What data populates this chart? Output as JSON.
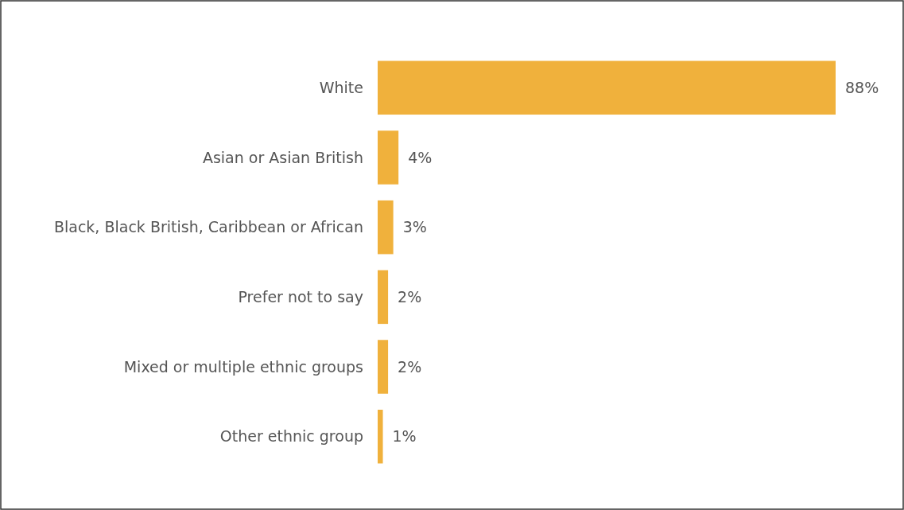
{
  "chart_data": {
    "type": "bar",
    "orientation": "horizontal",
    "categories": [
      "White",
      "Asian or Asian British",
      "Black, Black British, Caribbean or African",
      "Prefer not to say",
      "Mixed or multiple ethnic groups",
      "Other ethnic group"
    ],
    "values": [
      88,
      4,
      3,
      2,
      2,
      1
    ],
    "color": "#f0b13c",
    "value_labels": [
      "88%",
      "4%",
      "3%",
      "2%",
      "2%",
      "1%"
    ]
  }
}
